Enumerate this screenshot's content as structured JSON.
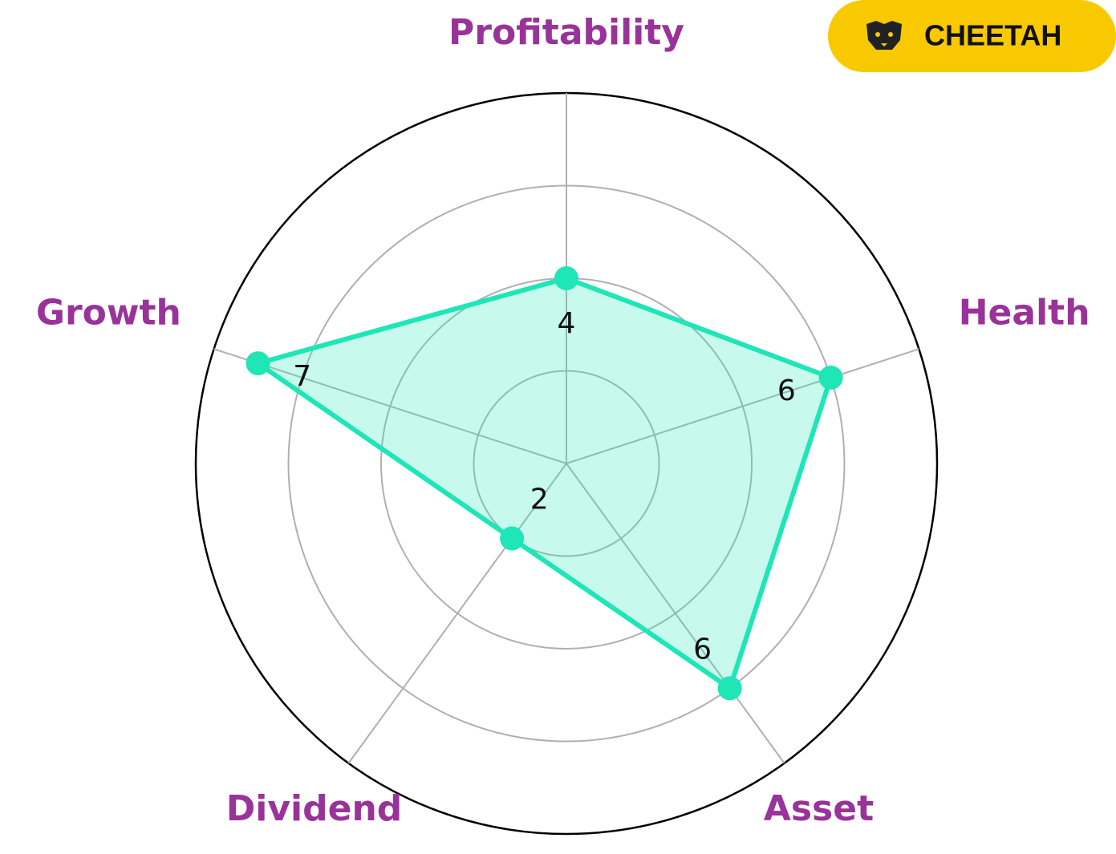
{
  "brand": "CHEETAH",
  "chart_data": {
    "type": "radar",
    "categories": [
      "Profitability",
      "Health",
      "Asset",
      "Dividend",
      "Growth"
    ],
    "values": [
      4,
      6,
      6,
      2,
      7
    ],
    "color": "#1ee6b6",
    "label_color": "#993399",
    "rlim": [
      0,
      8
    ],
    "rticks": [
      2,
      4,
      6,
      8
    ],
    "grid": true
  }
}
